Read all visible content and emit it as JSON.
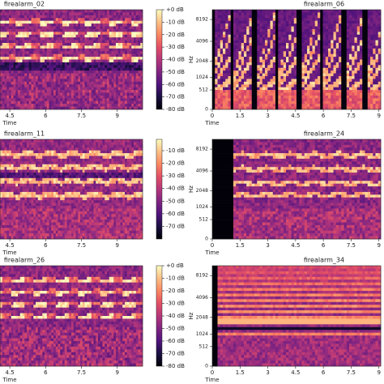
{
  "chart_data": [
    {
      "type": "spectrogram",
      "title": "firealarm_02",
      "x_label": "Time",
      "xlim": [
        4.09,
        10.06
      ],
      "xticks": [
        4.5,
        6,
        7.5,
        9
      ],
      "colormap": "magma",
      "zlim": [
        -80,
        0
      ],
      "zticks": [
        {
          "value": 0,
          "label": "+0 dB"
        },
        {
          "value": -10,
          "label": "-10 dB"
        },
        {
          "value": -20,
          "label": "-20 dB"
        },
        {
          "value": -30,
          "label": "-30 dB"
        },
        {
          "value": -40,
          "label": "-40 dB"
        },
        {
          "value": -50,
          "label": "-50 dB"
        },
        {
          "value": -60,
          "label": "-60 dB"
        },
        {
          "value": -70,
          "label": "-70 dB"
        },
        {
          "value": -80,
          "label": "-80 dB"
        }
      ]
    },
    {
      "type": "spectrogram",
      "title": "firealarm_06",
      "x_label": "Time",
      "xlim": [
        0,
        9.1
      ],
      "xticks": [
        0,
        1.5,
        3,
        4.5,
        6,
        7.5,
        9
      ],
      "colormap": "magma",
      "y_label": "Hz",
      "yscale": "mel",
      "ylim": [
        0,
        11025
      ],
      "yticks": [
        0,
        512,
        1024,
        2048,
        4096,
        8192
      ]
    },
    {
      "type": "spectrogram",
      "title": "firealarm_11",
      "x_label": "Time",
      "xlim": [
        4.09,
        10.06
      ],
      "xticks": [
        4.5,
        6,
        7.5,
        9
      ],
      "colormap": "magma",
      "zlim": [
        -80,
        -1
      ],
      "zticks": [
        {
          "value": -10,
          "label": "-10 dB"
        },
        {
          "value": -20,
          "label": "-20 dB"
        },
        {
          "value": -30,
          "label": "-30 dB"
        },
        {
          "value": -40,
          "label": "-40 dB"
        },
        {
          "value": -50,
          "label": "-50 dB"
        },
        {
          "value": -60,
          "label": "-60 dB"
        },
        {
          "value": -70,
          "label": "-70 dB"
        }
      ]
    },
    {
      "type": "spectrogram",
      "title": "firealarm_24",
      "x_label": "Time",
      "xlim": [
        0,
        9.1
      ],
      "xticks": [
        0,
        1.5,
        3,
        4.5,
        6,
        7.5,
        9
      ],
      "colormap": "magma",
      "y_label": "Hz",
      "yscale": "mel",
      "ylim": [
        0,
        11025
      ],
      "yticks": [
        0,
        512,
        1024,
        2048,
        4096,
        8192
      ]
    },
    {
      "type": "spectrogram",
      "title": "firealarm_26",
      "x_label": "Time",
      "xlim": [
        4.09,
        10.06
      ],
      "xticks": [
        4.5,
        6,
        7.5,
        9
      ],
      "colormap": "magma",
      "zlim": [
        -80,
        0
      ],
      "zticks": [
        {
          "value": 0,
          "label": "+0 dB"
        },
        {
          "value": -10,
          "label": "-10 dB"
        },
        {
          "value": -20,
          "label": "-20 dB"
        },
        {
          "value": -30,
          "label": "-30 dB"
        },
        {
          "value": -40,
          "label": "-40 dB"
        },
        {
          "value": -50,
          "label": "-50 dB"
        },
        {
          "value": -60,
          "label": "-60 dB"
        },
        {
          "value": -70,
          "label": "-70 dB"
        },
        {
          "value": -80,
          "label": "-80 dB"
        }
      ]
    },
    {
      "type": "spectrogram",
      "title": "firealarm_34",
      "x_label": "Time",
      "xlim": [
        0,
        9.1
      ],
      "xticks": [
        0,
        1.5,
        3,
        4.5,
        6,
        7.5,
        9
      ],
      "colormap": "magma",
      "y_label": "Hz",
      "yscale": "mel",
      "ylim": [
        0,
        11025
      ],
      "yticks": [
        0,
        512,
        1024,
        2048,
        4096,
        8192
      ]
    }
  ]
}
